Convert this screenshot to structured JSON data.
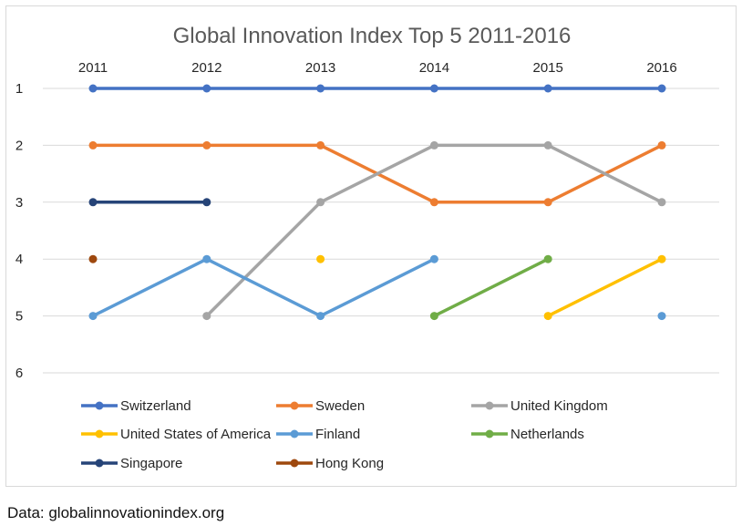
{
  "chart_data": {
    "type": "line",
    "title": "Global Innovation Index Top 5 2011-2016",
    "xlabel": "",
    "ylabel": "",
    "categories": [
      "2011",
      "2012",
      "2013",
      "2014",
      "2015",
      "2016"
    ],
    "y_ticks": [
      "1",
      "2",
      "3",
      "4",
      "5",
      "6"
    ],
    "ylim": [
      1,
      6
    ],
    "y_inverted": true,
    "grid": true,
    "legend_position": "bottom",
    "series": [
      {
        "name": "Switzerland",
        "color": "#4472C4",
        "values": [
          1,
          1,
          1,
          1,
          1,
          1
        ]
      },
      {
        "name": "Sweden",
        "color": "#ED7D31",
        "values": [
          2,
          2,
          2,
          3,
          3,
          2
        ]
      },
      {
        "name": "United Kingdom",
        "color": "#A5A5A5",
        "values": [
          null,
          5,
          3,
          2,
          2,
          3
        ]
      },
      {
        "name": "United States of America",
        "color": "#FFC000",
        "values": [
          null,
          null,
          4,
          null,
          5,
          4
        ]
      },
      {
        "name": "Finland",
        "color": "#5B9BD5",
        "values": [
          5,
          4,
          5,
          4,
          null,
          5
        ]
      },
      {
        "name": "Netherlands",
        "color": "#70AD47",
        "values": [
          null,
          null,
          null,
          5,
          4,
          null
        ]
      },
      {
        "name": "Singapore",
        "color": "#264478",
        "values": [
          3,
          3,
          null,
          null,
          null,
          null
        ]
      },
      {
        "name": "Hong Kong",
        "color": "#9E480E",
        "values": [
          4,
          null,
          null,
          null,
          null,
          null
        ]
      }
    ]
  },
  "source_note": "Data: globalinnovationindex.org"
}
